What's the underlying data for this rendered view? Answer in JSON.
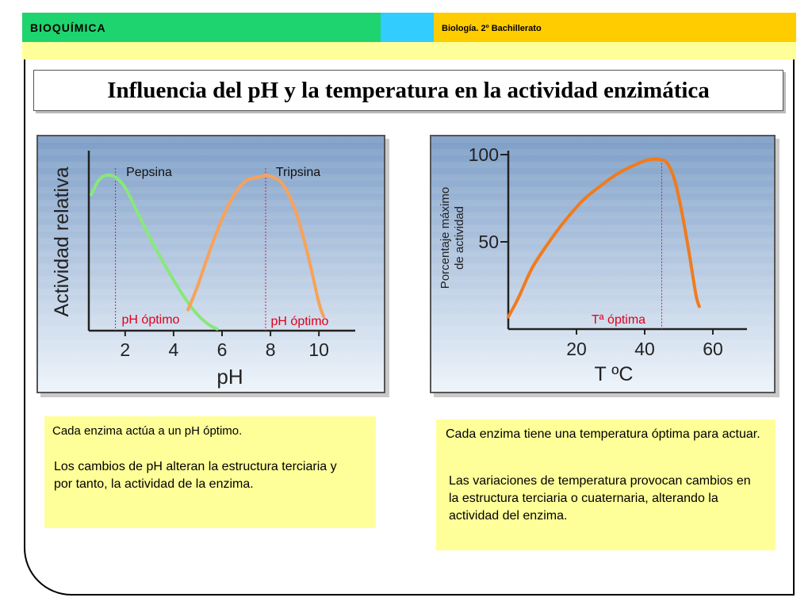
{
  "header": {
    "left_title": "BIOQUÍMICA",
    "right_title": "Biología. 2º Bachillerato"
  },
  "slide_title": "Influencia del pH y la temperatura en la actividad enzimática",
  "chart_data": [
    {
      "type": "line",
      "title": "",
      "xlabel": "pH",
      "ylabel": "Actividad relativa",
      "xlim": [
        0.5,
        11.5
      ],
      "ylim": [
        0,
        100
      ],
      "x_ticks": [
        "2",
        "4",
        "6",
        "8",
        "10"
      ],
      "grid": false,
      "series": [
        {
          "name": "Pepsina",
          "color": "#88e87a",
          "x": [
            0.6,
            0.9,
            1.2,
            1.6,
            2.0,
            2.5,
            3.0,
            3.5,
            4.0,
            4.5,
            5.0,
            5.5,
            5.8
          ],
          "y": [
            78,
            86,
            89,
            88,
            82,
            68,
            54,
            41,
            29,
            18,
            9,
            3,
            1
          ]
        },
        {
          "name": "Tripsina",
          "color": "#f7a25a",
          "x": [
            4.6,
            5.0,
            5.5,
            6.0,
            6.5,
            7.0,
            7.5,
            7.8,
            8.1,
            8.5,
            9.0,
            9.5,
            10.0,
            10.2
          ],
          "y": [
            12,
            26,
            46,
            64,
            78,
            86,
            88,
            89,
            88,
            84,
            70,
            46,
            16,
            8
          ]
        }
      ],
      "optimum_lines": [
        {
          "x": 1.6,
          "label": "pH óptimo"
        },
        {
          "x": 7.8,
          "label": "pH óptimo"
        }
      ]
    },
    {
      "type": "line",
      "title": "",
      "xlabel": "T ºC",
      "ylabel": "Porcentaje máximo de actividad",
      "xlim": [
        0,
        70
      ],
      "ylim": [
        0,
        100
      ],
      "x_ticks": [
        "20",
        "40",
        "60"
      ],
      "y_ticks": [
        "50",
        "100"
      ],
      "grid": false,
      "series": [
        {
          "name": "",
          "color": "#f07b1e",
          "x": [
            0,
            3,
            7,
            12,
            17,
            22,
            27,
            32,
            37,
            41,
            45,
            47,
            49,
            51,
            53,
            55,
            56
          ],
          "y": [
            7,
            18,
            35,
            50,
            63,
            74,
            82,
            89,
            94,
            97,
            97,
            94,
            84,
            66,
            44,
            20,
            13
          ]
        }
      ],
      "optimum_lines": [
        {
          "x": 45,
          "label": "Tª óptima"
        }
      ]
    }
  ],
  "notes": {
    "left": {
      "p1": "Cada enzima actúa a un pH óptimo.",
      "p2": "Los cambios de pH alteran la estructura terciaria y por tanto, la actividad de la enzima."
    },
    "right": {
      "p1": "Cada enzima tiene una temperatura óptima para actuar.",
      "p2": "Las variaciones de temperatura provocan cambios en la estructura terciaria o cuaternaria, alterando la actividad del enzima."
    }
  },
  "colors": {
    "header_green": "#1ed46e",
    "header_cyan": "#33ccff",
    "header_yellow": "#ffcc00",
    "strip_yellow": "#ffff99",
    "panel_top": "#7d9ec7",
    "panel_bottom": "#eef4fb",
    "optimum_text": "#e0001b"
  }
}
